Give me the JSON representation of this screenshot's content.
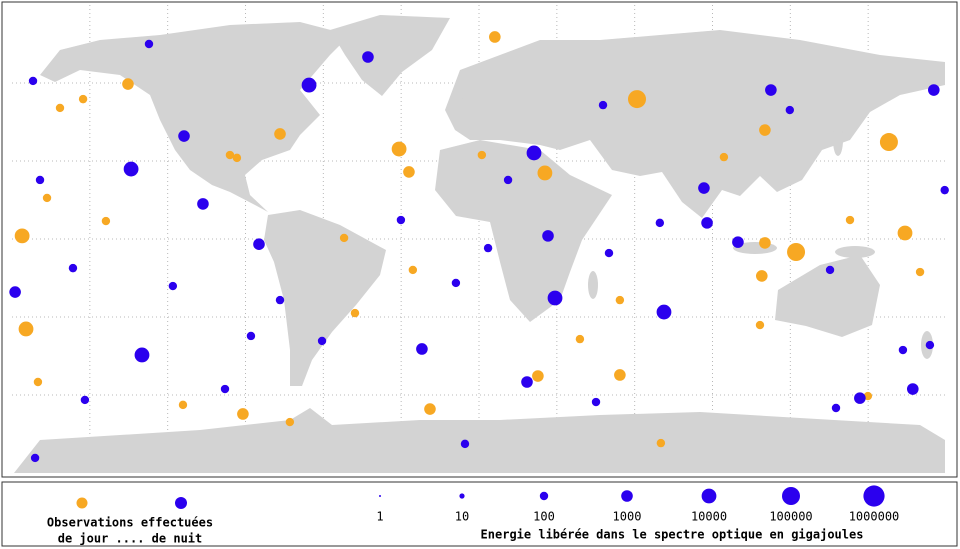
{
  "legend": {
    "line1": "Observations effectuées",
    "line2": "de jour .... de nuit",
    "day_color": "#f7a823",
    "night_color": "#2b00ee"
  },
  "scale": {
    "values": [
      1,
      10,
      100,
      1000,
      10000,
      100000,
      1000000
    ],
    "caption": "Energie libérée dans le spectre optique en gigajoules"
  },
  "events": {
    "day": [
      [
        60.9,
        53.8,
        100000
      ],
      [
        158,
        37.3,
        100000
      ],
      [
        122.2,
        -5,
        100000
      ],
      [
        25.4,
        25.4,
        10000
      ],
      [
        -174.6,
        -34.6,
        10000
      ],
      [
        -30.8,
        34.6,
        10000
      ],
      [
        -27,
        25.8,
        1000
      ],
      [
        -135.3,
        59.6,
        1000
      ],
      [
        6.1,
        77.7,
        1000
      ],
      [
        164.2,
        2.3,
        10000
      ],
      [
        -176.1,
        1.2,
        10000
      ],
      [
        110.2,
        -1.5,
        1000
      ],
      [
        22.7,
        -52.7,
        1000
      ],
      [
        -91,
        -67.3,
        1000
      ],
      [
        -18.9,
        -65.4,
        1000
      ],
      [
        110.2,
        41.9,
        1000
      ],
      [
        -76.7,
        40.4,
        1000
      ],
      [
        109,
        -14.2,
        1000
      ],
      [
        54.3,
        -52.3,
        1000
      ],
      [
        -25.5,
        -11.9,
        100
      ],
      [
        -166.5,
        15.8,
        100
      ],
      [
        -152.6,
        53.8,
        100
      ],
      [
        -52,
        0.4,
        100
      ],
      [
        -114.1,
        -63.8,
        100
      ],
      [
        38.9,
        -38.5,
        100
      ],
      [
        108.3,
        -33.1,
        100
      ],
      [
        143,
        7.3,
        100
      ],
      [
        170,
        -12.7,
        100
      ],
      [
        70.1,
        -78.5,
        100
      ],
      [
        -96,
        32.3,
        100
      ],
      [
        -161.5,
        50.4,
        100
      ],
      [
        149.9,
        -60.4,
        100
      ],
      [
        -47.8,
        -28.5,
        100
      ],
      [
        54.3,
        -23.5,
        100
      ],
      [
        -143.8,
        6.9,
        100
      ],
      [
        -93.3,
        31.2,
        100
      ],
      [
        1.1,
        32.3,
        100
      ],
      [
        94.4,
        31.5,
        100
      ],
      [
        -170,
        -55,
        100
      ],
      [
        -72.9,
        -70.4,
        100
      ]
    ],
    "night": [
      [
        21.2,
        33.1,
        10000
      ],
      [
        29.3,
        -22.7,
        10000
      ],
      [
        71.3,
        -28.1,
        10000
      ],
      [
        -129.9,
        -44.6,
        10000
      ],
      [
        -134.1,
        26.9,
        10000
      ],
      [
        -65.5,
        59.2,
        10000
      ],
      [
        -84.8,
        -2,
        1000
      ],
      [
        86.7,
        19.6,
        1000
      ],
      [
        112.5,
        57.3,
        1000
      ],
      [
        -106.4,
        13.5,
        1000
      ],
      [
        146.8,
        -61.2,
        1000
      ],
      [
        167.2,
        -57.7,
        1000
      ],
      [
        26.6,
        1.2,
        1000
      ],
      [
        -178.8,
        -20.4,
        1000
      ],
      [
        -113.7,
        39.6,
        1000
      ],
      [
        -42.8,
        70,
        1000
      ],
      [
        175.3,
        57.3,
        1000
      ],
      [
        87.9,
        6.2,
        1000
      ],
      [
        18.5,
        -55,
        1000
      ],
      [
        -22,
        -42.3,
        1000
      ],
      [
        99.8,
        -1.2,
        1000
      ],
      [
        137.6,
        -65,
        100
      ],
      [
        -171.1,
        -84.2,
        100
      ],
      [
        -5.4,
        -78.8,
        100
      ],
      [
        -127.2,
        75,
        100
      ],
      [
        -87.9,
        -37.3,
        100
      ],
      [
        -60.5,
        -39.2,
        100
      ],
      [
        50.1,
        -5.4,
        100
      ],
      [
        -156.5,
        -11.2,
        100
      ],
      [
        -30.1,
        7.3,
        100
      ],
      [
        179.5,
        18.8,
        100
      ],
      [
        47.8,
        51.5,
        100
      ],
      [
        -8.9,
        -16.9,
        100
      ],
      [
        -118,
        -18.1,
        100
      ],
      [
        -151.9,
        -61.9,
        100
      ],
      [
        135.3,
        -11.9,
        100
      ],
      [
        11.2,
        22.7,
        100
      ],
      [
        3.5,
        -3.5,
        100
      ],
      [
        -171.9,
        60.8,
        100
      ],
      [
        69.7,
        6.2,
        100
      ],
      [
        163.4,
        -42.7,
        100
      ],
      [
        45.1,
        -62.7,
        100
      ],
      [
        -97.9,
        -57.7,
        100
      ],
      [
        119.8,
        49.6,
        100
      ],
      [
        -169.2,
        22.7,
        100
      ],
      [
        -76.7,
        -23.5,
        100
      ],
      [
        173.8,
        -40.8,
        100
      ]
    ]
  }
}
